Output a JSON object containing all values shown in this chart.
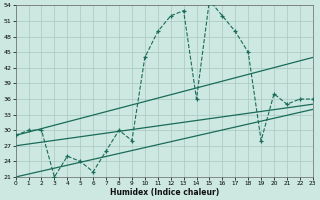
{
  "xlabel": "Humidex (Indice chaleur)",
  "bg_color": "#cce8e0",
  "line_color": "#1a6b5a",
  "grid_color": "#aac8c0",
  "series_x": [
    0,
    1,
    2,
    3,
    4,
    5,
    6,
    7,
    8,
    9,
    10,
    11,
    12,
    13,
    14,
    15,
    16,
    17,
    18,
    19,
    20,
    21,
    22,
    23
  ],
  "series_y": [
    29,
    30,
    30,
    21,
    25,
    24,
    22,
    26,
    30,
    28,
    44,
    49,
    52,
    53,
    36,
    55,
    52,
    49,
    45,
    28,
    37,
    35,
    36,
    36
  ],
  "trend1_x": [
    0,
    23
  ],
  "trend1_y": [
    29,
    44
  ],
  "trend2_x": [
    0,
    23
  ],
  "trend2_y": [
    27,
    35
  ],
  "trend3_x": [
    0,
    23
  ],
  "trend3_y": [
    21,
    34
  ],
  "xmin": 0,
  "xmax": 23,
  "ymin": 21,
  "ymax": 54,
  "yticks": [
    21,
    24,
    27,
    30,
    33,
    36,
    39,
    42,
    45,
    48,
    51,
    54
  ],
  "xticks": [
    0,
    1,
    2,
    3,
    4,
    5,
    6,
    7,
    8,
    9,
    10,
    11,
    12,
    13,
    14,
    15,
    16,
    17,
    18,
    19,
    20,
    21,
    22,
    23
  ]
}
